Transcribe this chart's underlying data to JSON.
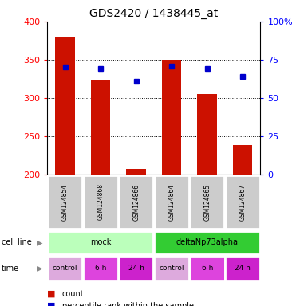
{
  "title": "GDS2420 / 1438445_at",
  "samples": [
    "GSM124854",
    "GSM124868",
    "GSM124866",
    "GSM124864",
    "GSM124865",
    "GSM124867"
  ],
  "counts": [
    380,
    323,
    207,
    350,
    305,
    238
  ],
  "percentile_ranks": [
    340,
    338,
    322,
    342,
    338,
    328
  ],
  "ylim_left": [
    200,
    400
  ],
  "ylim_right": [
    0,
    100
  ],
  "yticks_left": [
    200,
    250,
    300,
    350,
    400
  ],
  "yticks_right": [
    0,
    25,
    50,
    75,
    100
  ],
  "bar_color": "#cc1100",
  "dot_color": "#0000cc",
  "cell_line_labels": [
    "mock",
    "deltaNp73alpha"
  ],
  "cell_line_spans": [
    [
      0,
      3
    ],
    [
      3,
      6
    ]
  ],
  "cell_line_color_mock": "#bbffbb",
  "cell_line_color_delta": "#33cc33",
  "time_labels": [
    "control",
    "6 h",
    "24 h",
    "control",
    "6 h",
    "24 h"
  ],
  "time_color_control": "#ddaadd",
  "time_color_h6": "#dd44dd",
  "time_color_h24": "#cc22cc",
  "sample_box_color": "#cccccc",
  "legend_count_color": "#cc1100",
  "legend_dot_color": "#0000cc",
  "bar_width": 0.55
}
